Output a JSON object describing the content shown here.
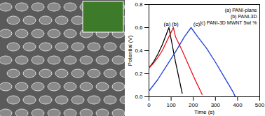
{
  "chart_data": {
    "type": "line",
    "x_label": "Time (s)",
    "y_label": "Potential (V)",
    "xlim": [
      0,
      500
    ],
    "xticks": [
      0,
      100,
      200,
      300,
      400,
      500
    ],
    "ylim": [
      0,
      0.8
    ],
    "yticks": [
      {
        "value": 0,
        "label": "0.0"
      },
      {
        "value": 0.2,
        "label": "0.2"
      },
      {
        "value": 0.4,
        "label": "0.4"
      },
      {
        "value": 0.6,
        "label": "0.6"
      },
      {
        "value": 0.8,
        "label": "0.8"
      }
    ],
    "legend": "upper right",
    "series": [
      {
        "name": "(a) PANI-plane",
        "color": "#000000",
        "x": [
          0,
          20,
          40,
          60,
          80,
          90,
          100,
          120,
          140,
          150
        ],
        "values": [
          0.25,
          0.3,
          0.37,
          0.45,
          0.55,
          0.6,
          0.5,
          0.3,
          0.12,
          0.03
        ]
      },
      {
        "name": "(b) PANI-3D",
        "color": "#e8141c",
        "x": [
          0,
          20,
          40,
          60,
          80,
          100,
          110,
          120,
          150,
          180,
          210,
          240
        ],
        "values": [
          0.25,
          0.29,
          0.34,
          0.4,
          0.48,
          0.56,
          0.6,
          0.52,
          0.4,
          0.27,
          0.14,
          0.02
        ]
      },
      {
        "name": "(c) PANI-3D MWNT 5wt %",
        "color": "#1f3fd6",
        "x": [
          0,
          40,
          80,
          120,
          160,
          190,
          220,
          260,
          300,
          340,
          380,
          390
        ],
        "values": [
          0.05,
          0.15,
          0.27,
          0.39,
          0.52,
          0.6,
          0.52,
          0.42,
          0.3,
          0.17,
          0.04,
          0.0
        ]
      }
    ],
    "annotations": [
      {
        "text": "(a)",
        "x": 82,
        "y": 0.63
      },
      {
        "text": "(b)",
        "x": 118,
        "y": 0.63
      },
      {
        "text": "(c)",
        "x": 215,
        "y": 0.63
      }
    ]
  }
}
